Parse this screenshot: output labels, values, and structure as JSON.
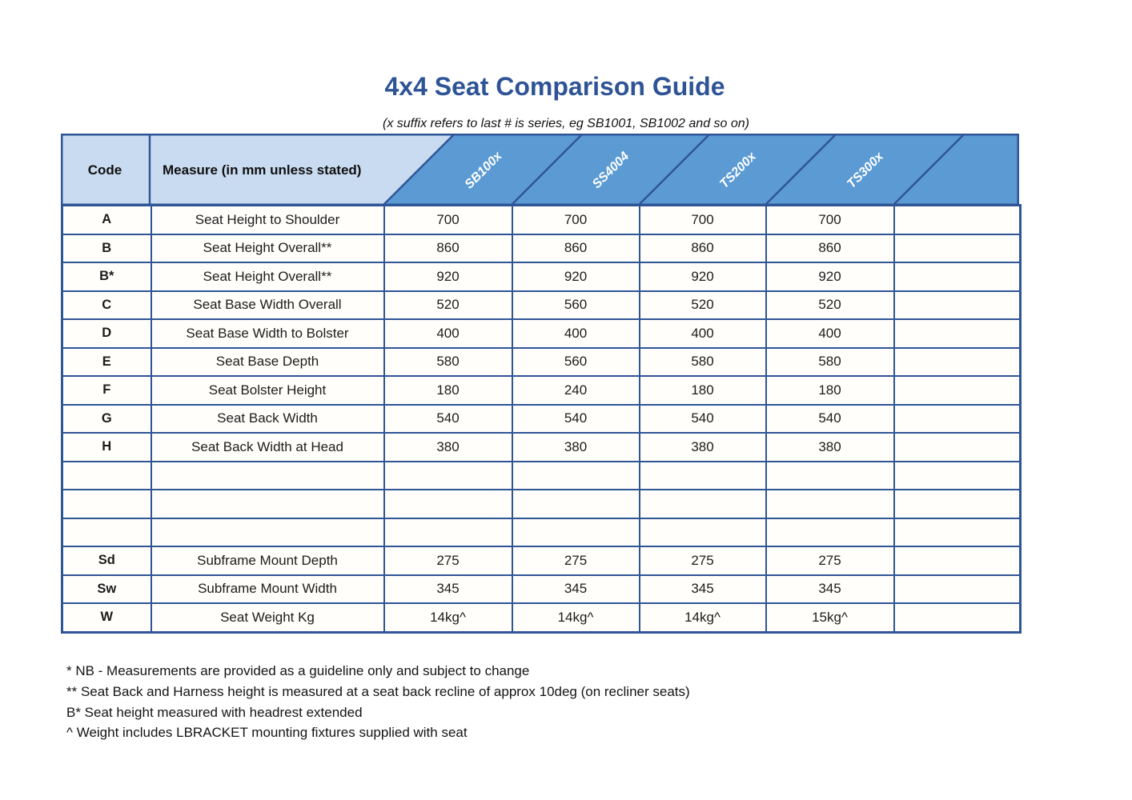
{
  "page": {
    "title": "4x4 Seat Comparison Guide",
    "subtitle": "(x suffix refers to last # is series, eg SB1001, SB1002 and so on)"
  },
  "table": {
    "header": {
      "code": "Code",
      "measure": "Measure (in mm unless stated)",
      "products": [
        "SB100x",
        "SS4004",
        "TS200x",
        "TS300x"
      ]
    },
    "rows": [
      {
        "code": "A",
        "measure": "Seat Height to Shoulder",
        "values": [
          "700",
          "700",
          "700",
          "700",
          ""
        ]
      },
      {
        "code": "B",
        "measure": "Seat Height Overall**",
        "values": [
          "860",
          "860",
          "860",
          "860",
          ""
        ]
      },
      {
        "code": "B*",
        "measure": "Seat Height Overall**",
        "values": [
          "920",
          "920",
          "920",
          "920",
          ""
        ]
      },
      {
        "code": "C",
        "measure": "Seat Base Width Overall",
        "values": [
          "520",
          "560",
          "520",
          "520",
          ""
        ]
      },
      {
        "code": "D",
        "measure": "Seat Base Width to Bolster",
        "values": [
          "400",
          "400",
          "400",
          "400",
          ""
        ]
      },
      {
        "code": "E",
        "measure": "Seat Base Depth",
        "values": [
          "580",
          "560",
          "580",
          "580",
          ""
        ]
      },
      {
        "code": "F",
        "measure": "Seat Bolster Height",
        "values": [
          "180",
          "240",
          "180",
          "180",
          ""
        ]
      },
      {
        "code": "G",
        "measure": "Seat Back Width",
        "values": [
          "540",
          "540",
          "540",
          "540",
          ""
        ]
      },
      {
        "code": "H",
        "measure": "Seat Back Width at Head",
        "values": [
          "380",
          "380",
          "380",
          "380",
          ""
        ]
      },
      {
        "code": "",
        "measure": "",
        "values": [
          "",
          "",
          "",
          "",
          ""
        ]
      },
      {
        "code": "",
        "measure": "",
        "values": [
          "",
          "",
          "",
          "",
          ""
        ]
      },
      {
        "code": "",
        "measure": "",
        "values": [
          "",
          "",
          "",
          "",
          ""
        ]
      },
      {
        "code": "Sd",
        "measure": "Subframe Mount Depth",
        "values": [
          "275",
          "275",
          "275",
          "275",
          ""
        ]
      },
      {
        "code": "Sw",
        "measure": "Subframe Mount Width",
        "values": [
          "345",
          "345",
          "345",
          "345",
          ""
        ]
      },
      {
        "code": "W",
        "measure": "Seat Weight Kg",
        "values": [
          "14kg^",
          "14kg^",
          "14kg^",
          "15kg^",
          ""
        ]
      }
    ]
  },
  "footnotes": [
    "* NB - Measurements are provided as a guideline only and subject to change",
    "** Seat Back and Harness height is measured at a seat back recline of approx 10deg (on recliner seats)",
    "B* Seat height measured with headrest extended",
    "^ Weight includes LBRACKET mounting fixtures supplied with seat"
  ],
  "colors": {
    "title": "#2e5496",
    "header_light": "#c9dbf0",
    "header_blue": "#5b9ad3",
    "border": "#2f5597",
    "header_label_text": "#ffffff"
  }
}
